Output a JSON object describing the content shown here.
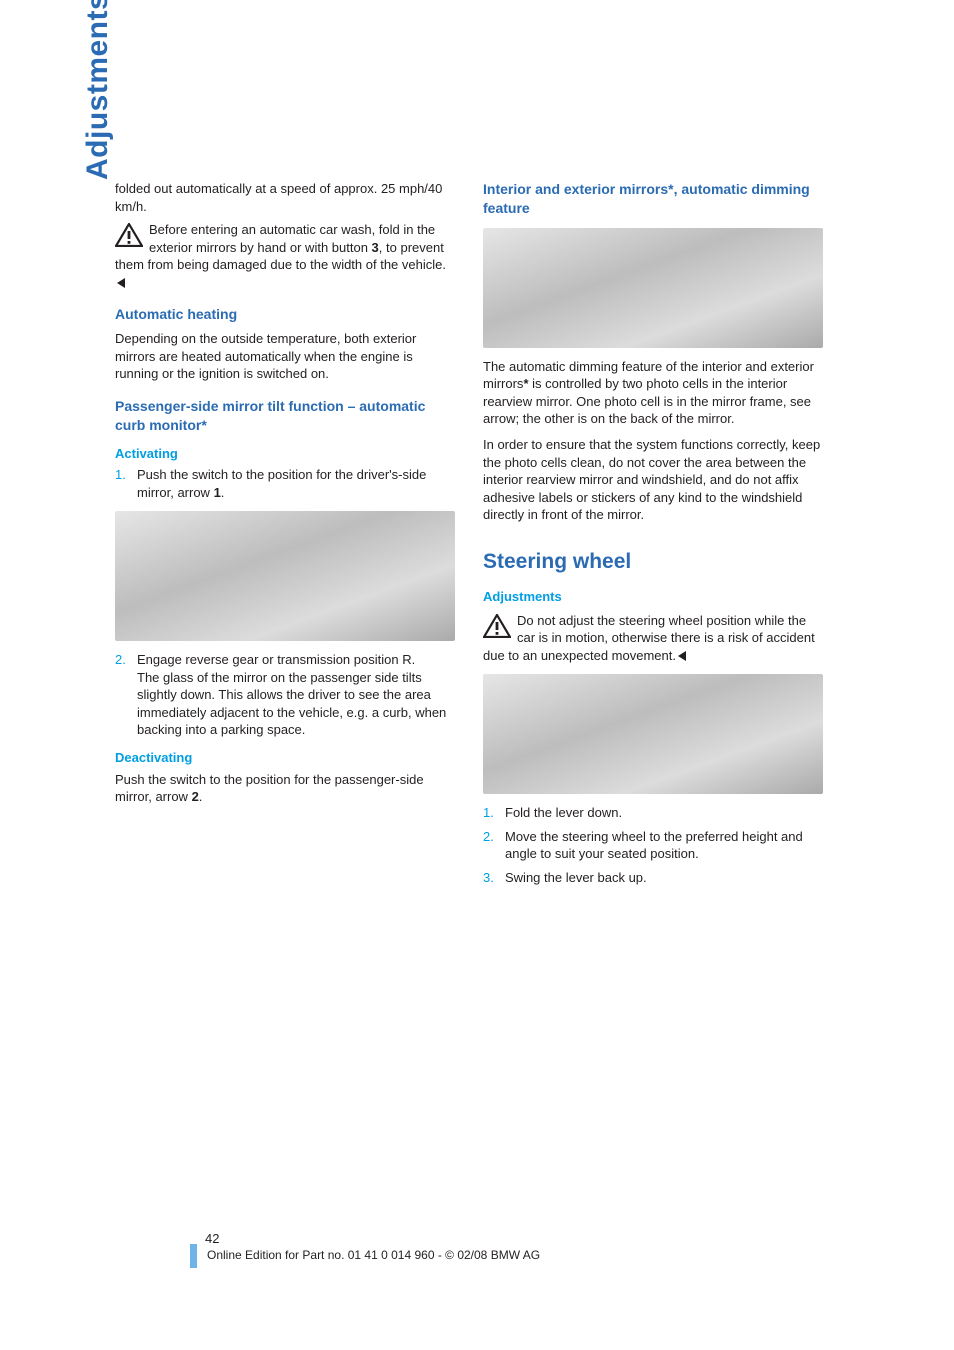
{
  "side_tab": "Adjustments",
  "left": {
    "intro1": "folded out automatically at a speed of approx. 25 mph/40 km/h.",
    "warn1_a": "Before entering an automatic car wash, fold in the exterior mirrors by hand or with button ",
    "warn1_bold": "3",
    "warn1_b": ", to prevent them from being damaged due to the width of the vehicle.",
    "h_autoheat": "Automatic heating",
    "autoheat_body": "Depending on the outside temperature, both exterior mirrors are heated automatically when the engine is running or the ignition is switched on.",
    "h_passenger": "Passenger-side mirror tilt function – automatic curb monitor*",
    "h_activating": "Activating",
    "act_li1_a": "Push the switch to the position for the driver's-side mirror, arrow ",
    "act_li1_bold": "1",
    "act_li1_b": ".",
    "act_li2_a": "Engage reverse gear or transmission position R.",
    "act_li2_b": "The glass of the mirror on the passenger side tilts slightly down. This allows the driver to see the area immediately adjacent to the vehicle, e.g. a curb, when backing into a parking space.",
    "h_deact": "Deactivating",
    "deact_body_a": "Push the switch to the position for the passenger-side mirror, arrow ",
    "deact_bold": "2",
    "deact_body_b": "."
  },
  "right": {
    "h_interior": "Interior and exterior mirrors*, automatic dimming feature",
    "interior_p1": "The automatic dimming feature of the interior and exterior mirrors",
    "interior_star": "*",
    "interior_p1b": " is controlled by two photo cells in the interior rearview mirror. One photo cell is in the mirror frame, see arrow; the other is on the back of the mirror.",
    "interior_p2": "In order to ensure that the system functions correctly, keep the photo cells clean, do not cover the area between the interior rearview mirror and windshield, and do not affix adhesive labels or stickers of any kind to the windshield directly in front of the mirror.",
    "h_steering": "Steering wheel",
    "h_adjustments": "Adjustments",
    "warn2": "Do not adjust the steering wheel position while the car is in motion, otherwise there is a risk of accident due to an unexpected movement.",
    "li1": "Fold the lever down.",
    "li2": "Move the steering wheel to the preferred height and angle to suit your seated position.",
    "li3": "Swing the lever back up."
  },
  "page_number": "42",
  "footer": "Online Edition for Part no. 01 41 0 014 960 - © 02/08 BMW AG",
  "img_heights": {
    "mirror_switch": 130,
    "rearview": 120,
    "steering": 120
  }
}
